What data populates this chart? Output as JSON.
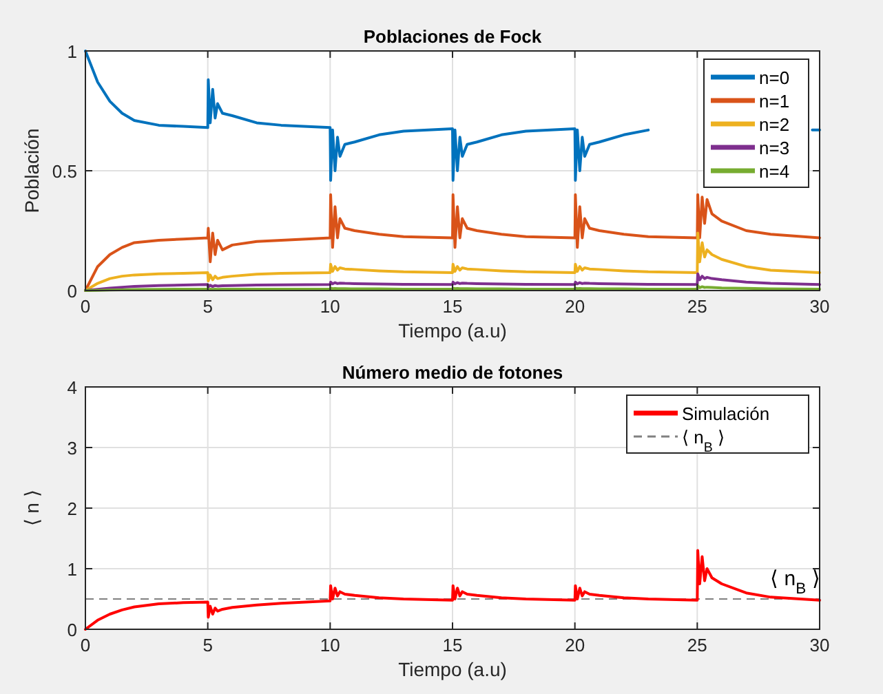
{
  "chart_data": [
    {
      "type": "line",
      "title": "Poblaciones de Fock",
      "xlabel": "Tiempo (a.u)",
      "ylabel": "Población",
      "x": [
        0,
        0.5,
        1,
        1.5,
        2,
        3,
        4,
        5,
        5.02,
        5.1,
        5.2,
        5.3,
        5.4,
        5.6,
        6,
        7,
        8,
        10,
        10.02,
        10.1,
        10.2,
        10.3,
        10.4,
        10.6,
        11,
        12,
        13,
        15,
        15.02,
        15.1,
        15.2,
        15.3,
        15.4,
        15.6,
        16,
        17,
        18,
        20,
        20.02,
        20.1,
        20.2,
        20.3,
        20.4,
        20.6,
        21,
        22,
        23,
        25,
        25.02,
        25.1,
        25.2,
        25.3,
        25.4,
        25.6,
        26,
        27,
        28,
        30
      ],
      "xlim": [
        0,
        30
      ],
      "xticks": [
        0,
        5,
        10,
        15,
        20,
        25,
        30
      ],
      "ylim": [
        0,
        1
      ],
      "yticks": [
        0,
        0.5,
        1
      ],
      "grid": true,
      "legend": "top right",
      "series": [
        {
          "name": "n=0",
          "color": "#0072bd",
          "x": [
            0,
            0.5,
            1,
            1.5,
            2,
            3,
            4,
            5,
            5.02,
            5.1,
            5.2,
            5.3,
            5.4,
            5.6,
            6,
            7,
            8,
            10,
            10.02,
            10.1,
            10.2,
            10.3,
            10.4,
            10.6,
            11,
            12,
            13,
            15,
            15.02,
            15.1,
            15.2,
            15.3,
            15.4,
            15.6,
            16,
            17,
            18,
            20,
            20.02,
            20.1,
            20.2,
            20.3,
            20.4,
            20.6,
            21,
            22,
            23,
            25,
            25.02,
            25.1,
            25.2,
            25.3,
            25.4,
            25.6,
            26,
            27,
            29.7,
            30
          ],
          "values": [
            1,
            0.87,
            0.79,
            0.74,
            0.71,
            0.69,
            0.685,
            0.68,
            0.88,
            0.7,
            0.84,
            0.72,
            0.78,
            0.74,
            0.73,
            0.7,
            0.69,
            0.68,
            0.46,
            0.67,
            0.5,
            0.64,
            0.56,
            0.61,
            0.62,
            0.65,
            0.665,
            0.675,
            0.46,
            0.67,
            0.5,
            0.64,
            0.56,
            0.61,
            0.62,
            0.65,
            0.665,
            0.675,
            0.46,
            0.67,
            0.5,
            0.64,
            0.56,
            0.61,
            0.62,
            0.65,
            0.67,
            null,
            null,
            null,
            null,
            null,
            null,
            null,
            null,
            null,
            0.67,
            0.67
          ]
        },
        {
          "name": "n=1",
          "color": "#d95319",
          "values": [
            0,
            0.1,
            0.15,
            0.18,
            0.2,
            0.21,
            0.215,
            0.22,
            0.26,
            0.12,
            0.24,
            0.15,
            0.21,
            0.17,
            0.19,
            0.205,
            0.21,
            0.22,
            0.4,
            0.18,
            0.35,
            0.22,
            0.3,
            0.26,
            0.25,
            0.235,
            0.225,
            0.22,
            0.4,
            0.18,
            0.35,
            0.22,
            0.3,
            0.26,
            0.25,
            0.235,
            0.225,
            0.22,
            0.4,
            0.18,
            0.35,
            0.22,
            0.3,
            0.26,
            0.25,
            0.235,
            0.225,
            0.22,
            0.4,
            0.22,
            0.39,
            0.28,
            0.38,
            0.32,
            0.29,
            0.25,
            0.235,
            0.22
          ]
        },
        {
          "name": "n=2",
          "color": "#edb120",
          "values": [
            0,
            0.03,
            0.05,
            0.06,
            0.065,
            0.07,
            0.072,
            0.075,
            0.04,
            0.065,
            0.045,
            0.06,
            0.05,
            0.055,
            0.06,
            0.068,
            0.072,
            0.075,
            0.11,
            0.08,
            0.1,
            0.085,
            0.095,
            0.09,
            0.088,
            0.082,
            0.078,
            0.075,
            0.11,
            0.08,
            0.1,
            0.085,
            0.095,
            0.09,
            0.088,
            0.082,
            0.078,
            0.075,
            0.11,
            0.08,
            0.1,
            0.085,
            0.095,
            0.09,
            0.088,
            0.082,
            0.078,
            0.075,
            0.24,
            0.12,
            0.2,
            0.14,
            0.17,
            0.15,
            0.13,
            0.1,
            0.085,
            0.075
          ]
        },
        {
          "name": "n=3",
          "color": "#7e2f8e",
          "values": [
            0,
            0.005,
            0.01,
            0.014,
            0.017,
            0.021,
            0.023,
            0.025,
            0.015,
            0.022,
            0.017,
            0.021,
            0.019,
            0.02,
            0.021,
            0.023,
            0.024,
            0.025,
            0.035,
            0.028,
            0.033,
            0.029,
            0.031,
            0.03,
            0.029,
            0.027,
            0.026,
            0.025,
            0.035,
            0.028,
            0.033,
            0.029,
            0.031,
            0.03,
            0.029,
            0.027,
            0.026,
            0.025,
            0.035,
            0.028,
            0.033,
            0.029,
            0.031,
            0.03,
            0.029,
            0.027,
            0.026,
            0.025,
            0.07,
            0.045,
            0.06,
            0.05,
            0.055,
            0.05,
            0.045,
            0.035,
            0.03,
            0.025
          ]
        },
        {
          "name": "n=4",
          "color": "#77ac30",
          "values": [
            0,
            0.001,
            0.002,
            0.003,
            0.004,
            0.005,
            0.006,
            0.006,
            0.004,
            0.006,
            0.005,
            0.006,
            0.005,
            0.006,
            0.006,
            0.006,
            0.006,
            0.006,
            0.01,
            0.008,
            0.009,
            0.008,
            0.008,
            0.008,
            0.007,
            0.007,
            0.006,
            0.006,
            0.01,
            0.008,
            0.009,
            0.008,
            0.008,
            0.008,
            0.007,
            0.007,
            0.006,
            0.006,
            0.01,
            0.008,
            0.009,
            0.008,
            0.008,
            0.008,
            0.007,
            0.007,
            0.006,
            0.006,
            0.02,
            0.012,
            0.016,
            0.013,
            0.014,
            0.013,
            0.011,
            0.009,
            0.007,
            0.006
          ]
        }
      ]
    },
    {
      "type": "line",
      "title": "Número medio de fotones",
      "xlabel": "Tiempo (a.u)",
      "ylabel": "⟨ n ⟩",
      "x": [
        0,
        0.5,
        1,
        1.5,
        2,
        3,
        4,
        5,
        5.02,
        5.1,
        5.2,
        5.3,
        5.4,
        5.6,
        6,
        7,
        8,
        10,
        10.02,
        10.1,
        10.2,
        10.3,
        10.4,
        10.6,
        11,
        12,
        13,
        15,
        15.02,
        15.1,
        15.2,
        15.3,
        15.4,
        15.6,
        16,
        17,
        18,
        20,
        20.02,
        20.1,
        20.2,
        20.3,
        20.4,
        20.6,
        21,
        22,
        23,
        25,
        25.02,
        25.1,
        25.2,
        25.3,
        25.4,
        25.6,
        26,
        27,
        28,
        30
      ],
      "xlim": [
        0,
        30
      ],
      "xticks": [
        0,
        5,
        10,
        15,
        20,
        25,
        30
      ],
      "ylim": [
        0,
        4
      ],
      "yticks": [
        0,
        1,
        2,
        3,
        4
      ],
      "grid": true,
      "legend": "top right",
      "series": [
        {
          "name": "Simulación",
          "color": "#ff0000",
          "values": [
            0,
            0.15,
            0.25,
            0.32,
            0.37,
            0.42,
            0.44,
            0.45,
            0.2,
            0.38,
            0.25,
            0.35,
            0.3,
            0.33,
            0.36,
            0.4,
            0.43,
            0.47,
            0.72,
            0.5,
            0.68,
            0.55,
            0.62,
            0.58,
            0.56,
            0.52,
            0.5,
            0.48,
            0.72,
            0.5,
            0.68,
            0.55,
            0.62,
            0.58,
            0.56,
            0.52,
            0.5,
            0.48,
            0.72,
            0.5,
            0.68,
            0.55,
            0.62,
            0.58,
            0.56,
            0.52,
            0.5,
            0.48,
            1.3,
            0.75,
            1.2,
            0.8,
            1.0,
            0.85,
            0.75,
            0.6,
            0.53,
            0.48
          ]
        }
      ],
      "ref_lines": [
        {
          "axis": "y",
          "value": 0.5,
          "label": "⟨ n$_{B}$ ⟩",
          "color": "#808080",
          "line_style": "dashed"
        }
      ],
      "annotations": [
        {
          "text": "⟨ n$_{B}$ ⟩",
          "x": 29,
          "y": 0.5
        }
      ]
    }
  ]
}
